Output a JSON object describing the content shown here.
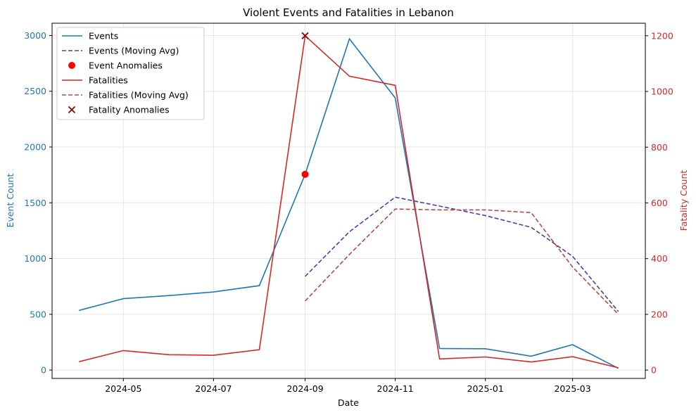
{
  "chart_data": {
    "type": "line",
    "title": "Violent Events and Fatalities in Lebanon",
    "xlabel": "Date",
    "ylabel_left": "Event Count",
    "ylabel_right": "Fatality Count",
    "x": [
      "2024-04",
      "2024-05",
      "2024-06",
      "2024-07",
      "2024-08",
      "2024-09",
      "2024-10",
      "2024-11",
      "2024-12",
      "2025-01",
      "2025-02",
      "2025-03",
      "2025-04"
    ],
    "x_ticks": [
      "2024-05",
      "2024-07",
      "2024-09",
      "2024-11",
      "2025-01",
      "2025-03"
    ],
    "ylim_left": [
      -75,
      3110
    ],
    "ylim_right": [
      -30,
      1245
    ],
    "yticks_left": [
      0,
      500,
      1000,
      1500,
      2000,
      2500,
      3000
    ],
    "yticks_right": [
      0,
      200,
      400,
      600,
      800,
      1000,
      1200
    ],
    "grid": true,
    "legend_position": "upper-left",
    "series": [
      {
        "name": "Events",
        "axis": "left",
        "style": "solid",
        "color": "#1f77b4",
        "values": [
          535,
          640,
          668,
          700,
          757,
          1755,
          2970,
          2440,
          193,
          191,
          124,
          228,
          15
        ]
      },
      {
        "name": "Events (Moving Avg)",
        "axis": "left",
        "style": "dashed",
        "color": "#4a3fa6",
        "values": [
          null,
          null,
          null,
          null,
          null,
          840,
          1240,
          1550,
          1470,
          1385,
          1280,
          1020,
          525
        ]
      },
      {
        "name": "Event Anomalies",
        "axis": "left",
        "style": "marker-circle",
        "color": "#ff0000",
        "points": [
          {
            "x": "2024-09",
            "y": 1755
          }
        ]
      },
      {
        "name": "Fatalities",
        "axis": "right",
        "style": "solid",
        "color": "#d62728",
        "values": [
          30,
          70,
          55,
          53,
          73,
          1200,
          1055,
          1022,
          40,
          47,
          29,
          48,
          8
        ]
      },
      {
        "name": "Fatalities (Moving Avg)",
        "axis": "right",
        "style": "dashed",
        "color": "#b24a4a",
        "values": [
          null,
          null,
          null,
          null,
          null,
          248,
          415,
          578,
          575,
          575,
          565,
          370,
          200
        ]
      },
      {
        "name": "Fatality Anomalies",
        "axis": "right",
        "style": "marker-x",
        "color": "#8b0000",
        "points": [
          {
            "x": "2024-09",
            "y": 1200
          }
        ]
      }
    ]
  }
}
